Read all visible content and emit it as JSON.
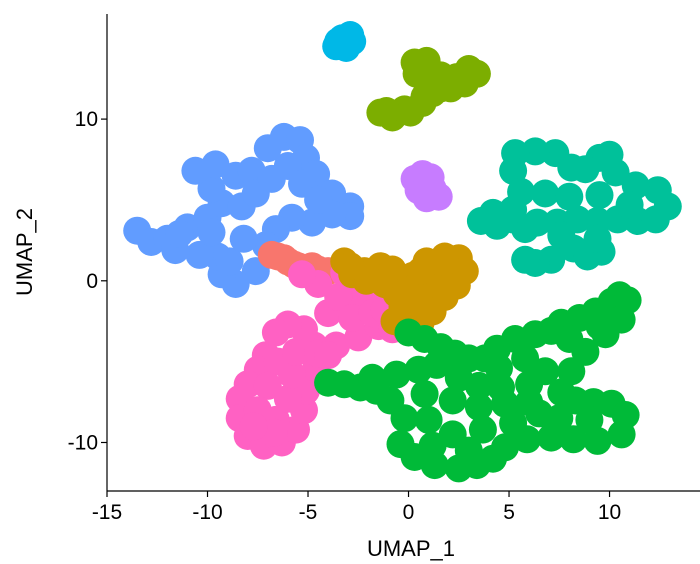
{
  "chart_data": {
    "type": "scatter",
    "title": "",
    "xlabel": "UMAP_1",
    "ylabel": "UMAP_2",
    "xlim": [
      -15,
      14.5
    ],
    "ylim": [
      -13,
      16.5
    ],
    "xticks": [
      -15,
      -10,
      -5,
      0,
      5,
      10
    ],
    "yticks": [
      -10,
      0,
      10
    ],
    "grid": false,
    "legend": "none",
    "clusters": [
      {
        "color": "#619CFF",
        "points": [
          [
            -13.5,
            3.1
          ],
          [
            -12.8,
            2.4
          ],
          [
            -12,
            2.6
          ],
          [
            -11,
            3.3
          ],
          [
            -10,
            3.9
          ],
          [
            -9.3,
            4.8
          ],
          [
            -9.8,
            5.7
          ],
          [
            -10.6,
            6.8
          ],
          [
            -9.6,
            7.2
          ],
          [
            -8.6,
            6.5
          ],
          [
            -7.8,
            6.8
          ],
          [
            -7,
            8.2
          ],
          [
            -6.2,
            8.9
          ],
          [
            -5.4,
            8.7
          ],
          [
            -5.1,
            7.6
          ],
          [
            -4.6,
            6.6
          ],
          [
            -3.8,
            5.4
          ],
          [
            -2.9,
            4.6
          ],
          [
            -2.9,
            4
          ],
          [
            -3.8,
            4.1
          ],
          [
            -4.8,
            3.6
          ],
          [
            -5.8,
            3.9
          ],
          [
            -6.6,
            3.2
          ],
          [
            -7.1,
            2.2
          ],
          [
            -7.6,
            0.6
          ],
          [
            -8.6,
            -0.2
          ],
          [
            -9.3,
            0.4
          ],
          [
            -9.5,
            1.5
          ],
          [
            -10.4,
            1.6
          ],
          [
            -11.6,
            1.9
          ],
          [
            -8.3,
            4.6
          ],
          [
            -7.6,
            5.4
          ],
          [
            -6.8,
            6.3
          ],
          [
            -6,
            7.1
          ],
          [
            -5.3,
            6
          ],
          [
            -4.5,
            5
          ],
          [
            -8.9,
            1.2
          ],
          [
            -8.2,
            2.6
          ],
          [
            -11.4,
            2.9
          ],
          [
            -9.8,
            3
          ]
        ]
      },
      {
        "color": "#F8766D",
        "points": [
          [
            -6.5,
            1.5
          ],
          [
            -6,
            1.2
          ],
          [
            -5.5,
            0.9
          ],
          [
            -5,
            0.8
          ],
          [
            -4.5,
            0.7
          ],
          [
            -4,
            0.6
          ],
          [
            -6.2,
            1.4
          ],
          [
            -5.7,
            1
          ],
          [
            -4.8,
            0.9
          ],
          [
            -6.8,
            1.6
          ]
        ]
      },
      {
        "color": "#FF61C3",
        "points": [
          [
            -7.1,
            -4.6
          ],
          [
            -7.5,
            -5.5
          ],
          [
            -8,
            -6.4
          ],
          [
            -8.4,
            -7.3
          ],
          [
            -8.4,
            -8.5
          ],
          [
            -8,
            -9.6
          ],
          [
            -7.2,
            -10.2
          ],
          [
            -6.3,
            -10
          ],
          [
            -5.6,
            -9.2
          ],
          [
            -5.2,
            -8
          ],
          [
            -5.1,
            -6.8
          ],
          [
            -4.6,
            -5.4
          ],
          [
            -4.7,
            -4
          ],
          [
            -5.2,
            -3
          ],
          [
            -6,
            -2.7
          ],
          [
            -6.6,
            -3.2
          ],
          [
            -6.5,
            -5
          ],
          [
            -7,
            -6.5
          ],
          [
            -7.5,
            -8
          ],
          [
            -6.6,
            -8.6
          ],
          [
            -6,
            -7.3
          ],
          [
            -5.8,
            -5.8
          ],
          [
            -5.6,
            -4.4
          ],
          [
            -6.7,
            -9.4
          ],
          [
            -7.7,
            -9
          ],
          [
            -4.5,
            -4.5
          ],
          [
            -3.6,
            -4
          ],
          [
            -2.5,
            -3.5
          ],
          [
            -1.5,
            -2.8
          ],
          [
            -0.5,
            -2.6
          ],
          [
            -4,
            -2
          ],
          [
            -3,
            -1.6
          ],
          [
            -2,
            -1.4
          ],
          [
            -1.5,
            -0.5
          ],
          [
            -2.5,
            -0.8
          ],
          [
            -3.5,
            -1
          ],
          [
            -4.5,
            -0.2
          ],
          [
            -5.3,
            0.4
          ],
          [
            -2.8,
            -2.3
          ],
          [
            -1.8,
            -2
          ],
          [
            -4,
            -4.6
          ],
          [
            -0.8,
            -3
          ],
          [
            -3.2,
            0.5
          ],
          [
            -1.2,
            -1.8
          ]
        ]
      },
      {
        "color": "#CD9600",
        "points": [
          [
            -3.2,
            1.2
          ],
          [
            -2.8,
            0.4
          ],
          [
            -2.2,
            0.6
          ],
          [
            -1.4,
            0.9
          ],
          [
            -0.8,
            0.7
          ],
          [
            0.2,
            0.3
          ],
          [
            0.9,
            1.2
          ],
          [
            1.8,
            1.5
          ],
          [
            2.5,
            1.4
          ],
          [
            2.8,
            0.6
          ],
          [
            2.4,
            -0.3
          ],
          [
            1.8,
            -1
          ],
          [
            1.2,
            -1.9
          ],
          [
            0.6,
            -2.6
          ],
          [
            -0.1,
            -3
          ],
          [
            -0.7,
            -2.5
          ],
          [
            -0.3,
            -1.6
          ],
          [
            -0.6,
            -0.8
          ],
          [
            -1.2,
            -0.2
          ],
          [
            -2.1,
            0
          ],
          [
            -0.1,
            -0.6
          ],
          [
            0.5,
            -1.3
          ],
          [
            1,
            -0.2
          ],
          [
            1.5,
            0.5
          ],
          [
            -2.9,
            0.9
          ],
          [
            0.6,
            0.6
          ],
          [
            2,
            -0.4
          ]
        ]
      },
      {
        "color": "#7CAE00",
        "points": [
          [
            -1.4,
            10.4
          ],
          [
            -0.8,
            10.1
          ],
          [
            0.1,
            10.4
          ],
          [
            0.7,
            11
          ],
          [
            1.2,
            11.6
          ],
          [
            1.2,
            12.5
          ],
          [
            0.6,
            13.1
          ],
          [
            0.3,
            13.5
          ],
          [
            0.9,
            13.6
          ],
          [
            1.6,
            12.7
          ],
          [
            2.4,
            12.6
          ],
          [
            3,
            13.1
          ],
          [
            3.4,
            12.8
          ],
          [
            2.8,
            12.2
          ],
          [
            2.1,
            11.9
          ],
          [
            1.6,
            11.9
          ],
          [
            0.8,
            11.4
          ],
          [
            -0.2,
            10.6
          ],
          [
            -1.1,
            10.5
          ],
          [
            0.4,
            12.8
          ]
        ]
      },
      {
        "color": "#00B8E7",
        "points": [
          [
            -3.5,
            14.8
          ],
          [
            -3.1,
            14.4
          ],
          [
            -2.8,
            14.8
          ],
          [
            -3.3,
            15
          ],
          [
            -2.9,
            15.2
          ],
          [
            -3.6,
            14.5
          ],
          [
            -3.2,
            14.6
          ]
        ]
      },
      {
        "color": "#C77CFF",
        "points": [
          [
            0.3,
            6.3
          ],
          [
            0.5,
            5.6
          ],
          [
            0.9,
            5.1
          ],
          [
            1.2,
            5.7
          ],
          [
            1.5,
            5.2
          ],
          [
            1.1,
            6.4
          ],
          [
            0.7,
            6.6
          ],
          [
            0.9,
            5.9
          ]
        ]
      },
      {
        "color": "#00C19A",
        "points": [
          [
            3.6,
            3.7
          ],
          [
            4.4,
            3.4
          ],
          [
            5.2,
            3.8
          ],
          [
            5.8,
            3.2
          ],
          [
            6.4,
            3.6
          ],
          [
            7.4,
            3.6
          ],
          [
            8.4,
            3.8
          ],
          [
            9.4,
            3.7
          ],
          [
            10.4,
            3.8
          ],
          [
            11.4,
            3.7
          ],
          [
            12.3,
            3.8
          ],
          [
            12.9,
            4.6
          ],
          [
            12.4,
            5.6
          ],
          [
            11.3,
            5.9
          ],
          [
            10.3,
            6.7
          ],
          [
            10,
            7.8
          ],
          [
            9.5,
            7.6
          ],
          [
            8.8,
            6.9
          ],
          [
            8.1,
            7
          ],
          [
            7.3,
            7.9
          ],
          [
            6.3,
            8
          ],
          [
            5.3,
            7.9
          ],
          [
            5.2,
            6.8
          ],
          [
            5.6,
            5.5
          ],
          [
            5.2,
            4.4
          ],
          [
            4.2,
            4.2
          ],
          [
            6.8,
            5.4
          ],
          [
            8,
            5.2
          ],
          [
            9.5,
            5.3
          ],
          [
            11,
            4.7
          ],
          [
            7.6,
            2.8
          ],
          [
            8.2,
            2
          ],
          [
            8.9,
            1.5
          ],
          [
            9.6,
            1.8
          ],
          [
            9.4,
            2.6
          ],
          [
            7.1,
            1.3
          ],
          [
            6.3,
            1.1
          ],
          [
            5.8,
            1.3
          ]
        ]
      },
      {
        "color": "#00BA38",
        "points": [
          [
            0,
            -3.2
          ],
          [
            0.8,
            -3.6
          ],
          [
            1.6,
            -4.1
          ],
          [
            2.3,
            -4.5
          ],
          [
            3,
            -4.8
          ],
          [
            3.8,
            -4.8
          ],
          [
            4.4,
            -4.2
          ],
          [
            5.3,
            -3.6
          ],
          [
            6.3,
            -3.3
          ],
          [
            7.1,
            -3.1
          ],
          [
            7.6,
            -2.6
          ],
          [
            8.5,
            -2.3
          ],
          [
            9.3,
            -1.9
          ],
          [
            10.1,
            -1.3
          ],
          [
            10.5,
            -0.9
          ],
          [
            10.9,
            -1.2
          ],
          [
            10.6,
            -2.4
          ],
          [
            9.8,
            -3.3
          ],
          [
            8.8,
            -4.4
          ],
          [
            8.1,
            -5.6
          ],
          [
            7.6,
            -6.9
          ],
          [
            8.3,
            -7.4
          ],
          [
            9.2,
            -7.5
          ],
          [
            10.1,
            -7.6
          ],
          [
            10.8,
            -8.3
          ],
          [
            10.6,
            -9.5
          ],
          [
            9.4,
            -9.9
          ],
          [
            8.2,
            -9.8
          ],
          [
            7.1,
            -9.7
          ],
          [
            5.9,
            -9.8
          ],
          [
            4.8,
            -10.3
          ],
          [
            4.2,
            -11
          ],
          [
            3.4,
            -11.4
          ],
          [
            2.5,
            -11.6
          ],
          [
            1.3,
            -11.4
          ],
          [
            0.3,
            -10.9
          ],
          [
            -0.4,
            -10.1
          ],
          [
            -0.2,
            -8.5
          ],
          [
            -0.9,
            -7.4
          ],
          [
            -1.6,
            -6.8
          ],
          [
            -2.4,
            -6.6
          ],
          [
            -3.2,
            -6.4
          ],
          [
            -4,
            -6.3
          ],
          [
            -1.8,
            -6
          ],
          [
            -0.6,
            -5.8
          ],
          [
            0.5,
            -5.5
          ],
          [
            1.4,
            -5.2
          ],
          [
            2.5,
            -6
          ],
          [
            3.5,
            -6.5
          ],
          [
            4.6,
            -6.6
          ],
          [
            6,
            -6.4
          ],
          [
            6.8,
            -5.6
          ],
          [
            6.5,
            -8.2
          ],
          [
            5.2,
            -8.8
          ],
          [
            3.7,
            -9.2
          ],
          [
            2.2,
            -9.5
          ],
          [
            1,
            -8.6
          ],
          [
            0.8,
            -7
          ],
          [
            2.2,
            -7.4
          ],
          [
            3.5,
            -7.8
          ],
          [
            4.8,
            -7.6
          ],
          [
            6,
            -7.5
          ],
          [
            7.5,
            -8.5
          ],
          [
            9,
            -8.6
          ],
          [
            5.8,
            -4.8
          ],
          [
            8,
            -3.6
          ],
          [
            9.5,
            -2.8
          ],
          [
            1.2,
            -10.2
          ],
          [
            3,
            -10.5
          ],
          [
            4.5,
            -5.4
          ]
        ]
      }
    ]
  }
}
